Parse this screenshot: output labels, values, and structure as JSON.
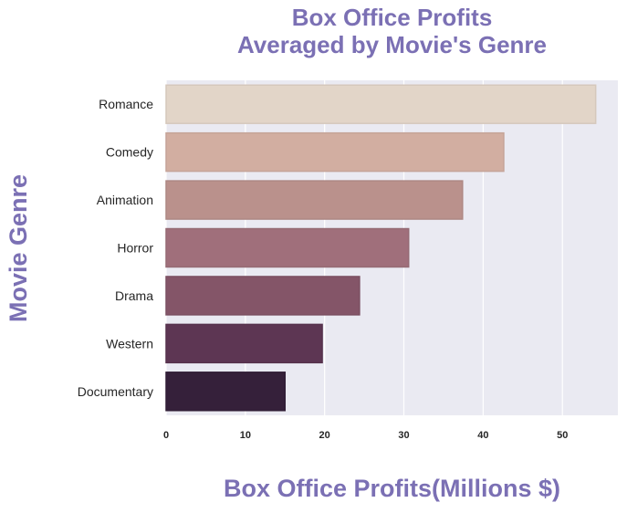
{
  "chart_data": {
    "type": "bar",
    "orientation": "horizontal",
    "title": [
      "Box Office Profits",
      "Averaged by Movie's Genre"
    ],
    "xlabel": "Box Office Profits(Millions $)",
    "ylabel": "Movie Genre",
    "categories": [
      "Romance",
      "Comedy",
      "Animation",
      "Horror",
      "Drama",
      "Western",
      "Documentary"
    ],
    "values": [
      54.2,
      42.6,
      37.4,
      30.6,
      24.4,
      19.7,
      15.0
    ],
    "xlim": [
      0,
      57
    ],
    "xticks": [
      "0",
      "10",
      "20",
      "30",
      "40",
      "50"
    ],
    "grid": true,
    "colors": {
      "title": "#7b70b4",
      "axis_label": "#7b70b4",
      "plot_background": "#eaeaf2",
      "grid": "#ffffff",
      "bars": [
        "#e2d5c8",
        "#d2aea1",
        "#ba918c",
        "#a06f7b",
        "#845568",
        "#5d3653",
        "#35203a"
      ],
      "bar_edges": [
        "#d5c8bc",
        "#c5a498",
        "#ae8884",
        "#956a74",
        "#7b5062",
        "#56324d",
        "#311e36"
      ]
    }
  }
}
